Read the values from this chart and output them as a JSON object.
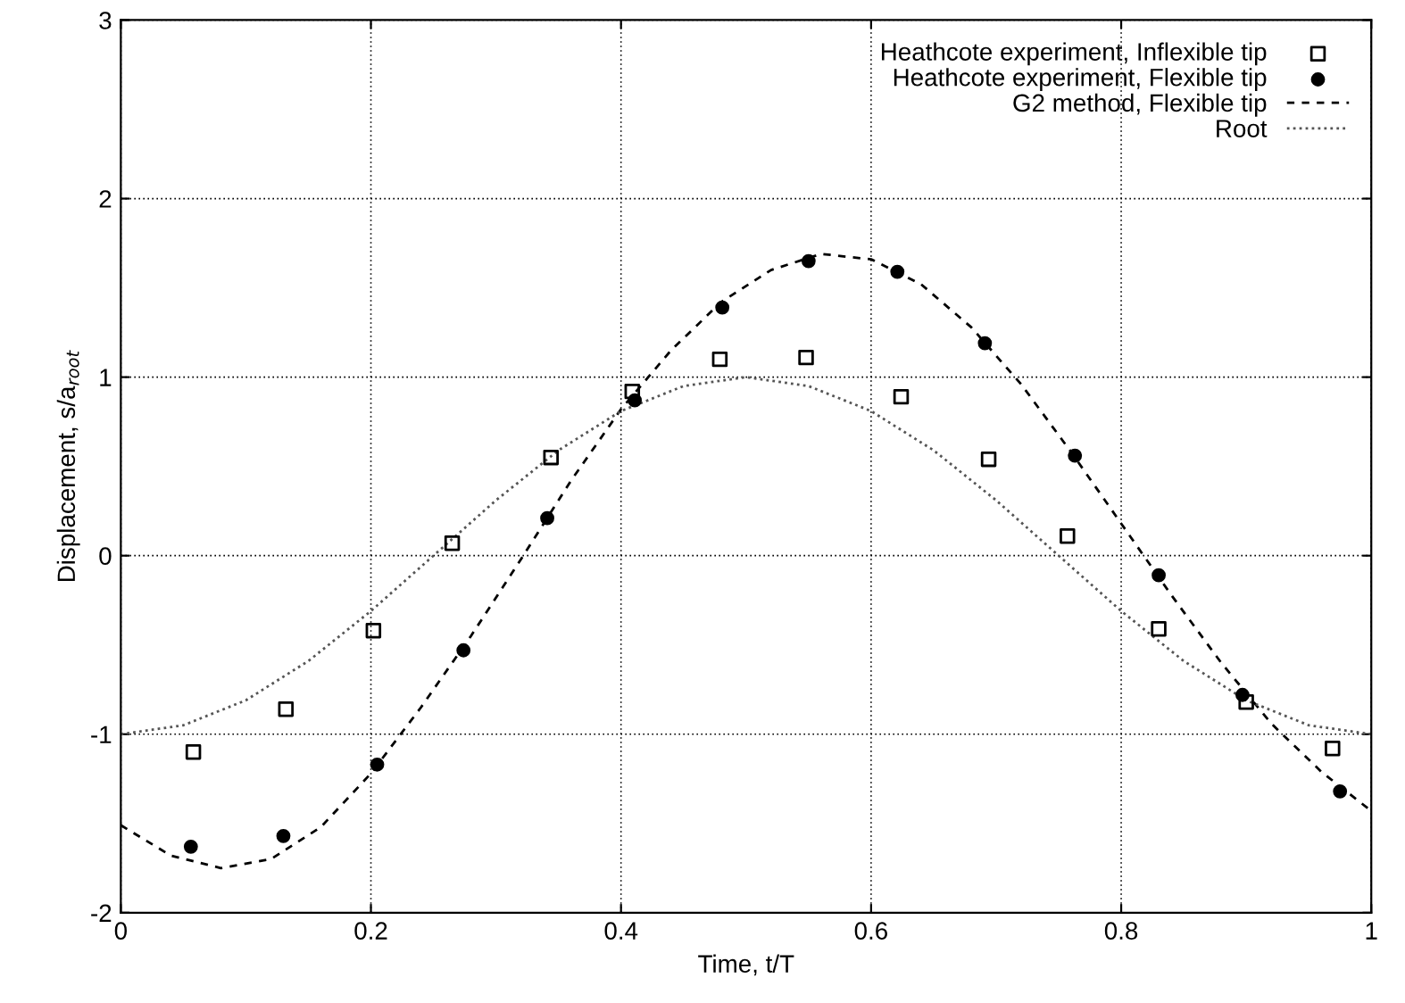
{
  "chart_data": {
    "type": "scatter",
    "xlabel": "Time, t/T",
    "ylabel": "Displacement, s/a$_{root}$",
    "xlim": [
      0,
      1
    ],
    "xticks": [
      0,
      0.2,
      0.4,
      0.6,
      0.8,
      1
    ],
    "ylim": [
      -2,
      3
    ],
    "yticks": [
      -2,
      -1,
      0,
      1,
      2,
      3
    ],
    "grid": true,
    "legend": "top right",
    "series": [
      {
        "name": "Heathcote experiment, Inflexible tip",
        "marker": "square",
        "color": "#000000",
        "x": [
          0.058,
          0.132,
          0.202,
          0.265,
          0.344,
          0.409,
          0.479,
          0.548,
          0.624,
          0.694,
          0.757,
          0.83,
          0.9,
          0.969
        ],
        "values": [
          -1.1,
          -0.86,
          -0.42,
          0.07,
          0.55,
          0.92,
          1.1,
          1.11,
          0.89,
          0.54,
          0.11,
          -0.41,
          -0.82,
          -1.08
        ]
      },
      {
        "name": "Heathcote experiment, Flexible tip",
        "marker": "circle",
        "color": "#000000",
        "x": [
          0.056,
          0.13,
          0.205,
          0.274,
          0.341,
          0.411,
          0.481,
          0.55,
          0.621,
          0.691,
          0.763,
          0.83,
          0.897,
          0.975
        ],
        "values": [
          -1.63,
          -1.57,
          -1.17,
          -0.53,
          0.21,
          0.87,
          1.39,
          1.65,
          1.59,
          1.19,
          0.56,
          -0.11,
          -0.78,
          -1.32
        ]
      },
      {
        "name": "G2 method, Flexible tip",
        "type": "line",
        "marker": "none",
        "line_style": "dashed",
        "color": "#000000",
        "x": [
          0,
          0.04,
          0.08,
          0.12,
          0.16,
          0.2,
          0.24,
          0.28,
          0.32,
          0.36,
          0.4,
          0.44,
          0.48,
          0.52,
          0.56,
          0.6,
          0.64,
          0.68,
          0.72,
          0.76,
          0.8,
          0.84,
          0.88,
          0.92,
          0.96,
          1.0
        ],
        "values": [
          -1.51,
          -1.68,
          -1.75,
          -1.7,
          -1.52,
          -1.22,
          -0.85,
          -0.45,
          -0.02,
          0.42,
          0.82,
          1.15,
          1.42,
          1.6,
          1.69,
          1.66,
          1.52,
          1.28,
          0.96,
          0.58,
          0.18,
          -0.22,
          -0.6,
          -0.94,
          -1.21,
          -1.43
        ]
      },
      {
        "name": "Root",
        "type": "line",
        "marker": "none",
        "line_style": "dotted",
        "color": "#555555",
        "x": [
          0,
          0.05,
          0.1,
          0.15,
          0.2,
          0.25,
          0.3,
          0.35,
          0.4,
          0.45,
          0.5,
          0.55,
          0.6,
          0.65,
          0.7,
          0.75,
          0.8,
          0.85,
          0.9,
          0.95,
          1.0
        ],
        "values": [
          -1,
          -0.95,
          -0.81,
          -0.59,
          -0.31,
          0,
          0.31,
          0.59,
          0.81,
          0.95,
          1,
          0.95,
          0.81,
          0.59,
          0.31,
          0,
          -0.31,
          -0.59,
          -0.81,
          -0.95,
          -1
        ]
      }
    ]
  }
}
